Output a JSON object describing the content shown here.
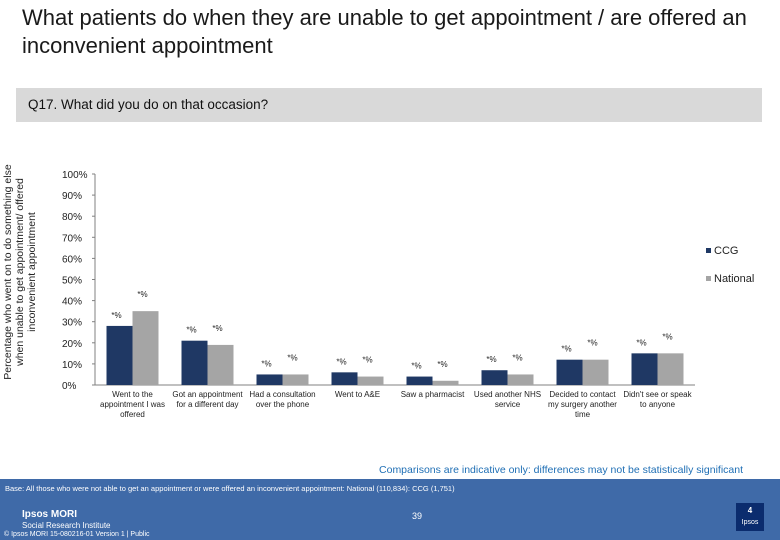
{
  "title": "What patients do when they are unable to get appointment  / are offered an inconvenient appointment",
  "question": "Q17. What did you do on that occasion?",
  "y_axis_title": "Percentage who went on to do something else when unable to get appointment/ offered inconvenient appointment",
  "note": "Comparisons are indicative only: differences may not be statistically significant",
  "base_text": "Base: All those who were not able to get an appointment or were offered an inconvenient appointment: National (110,834): CCG (1,751)",
  "logo": {
    "line1": "Ipsos MORI",
    "line2": "Social Research Institute",
    "badge_top": "4",
    "badge_bottom": "Ipsos"
  },
  "copyright": "© Ipsos MORI      15-080216-01 Version 1 | Public",
  "page_number": "39",
  "chart_data": {
    "type": "bar",
    "title": "",
    "ylim": [
      0,
      100
    ],
    "y_ticks": [
      "0%",
      "10%",
      "20%",
      "30%",
      "40%",
      "50%",
      "60%",
      "70%",
      "80%",
      "90%",
      "100%"
    ],
    "legend_position": "right",
    "categories": [
      "Went to the appointment I was offered",
      "Got an appointment for a different day",
      "Had a consultation over the phone",
      "Went to A&E",
      "Saw a pharmacist",
      "Used another NHS service",
      "Decided to contact my surgery another time",
      "Didn't see or speak to anyone"
    ],
    "series": [
      {
        "name": "CCG",
        "color": "#1f3864",
        "values": [
          28,
          21,
          5,
          6,
          4,
          7,
          12,
          15
        ],
        "labels": [
          "*%",
          "*%",
          "*%",
          "*%",
          "*%",
          "*%",
          "*%",
          "*%"
        ]
      },
      {
        "name": "National",
        "color": "#a5a5a5",
        "values": [
          35,
          19,
          5,
          4,
          2,
          5,
          12,
          15
        ],
        "labels": [
          "*%",
          "*%",
          "*%",
          "*%",
          "*%",
          "*%",
          "*%",
          "*%"
        ]
      }
    ]
  }
}
